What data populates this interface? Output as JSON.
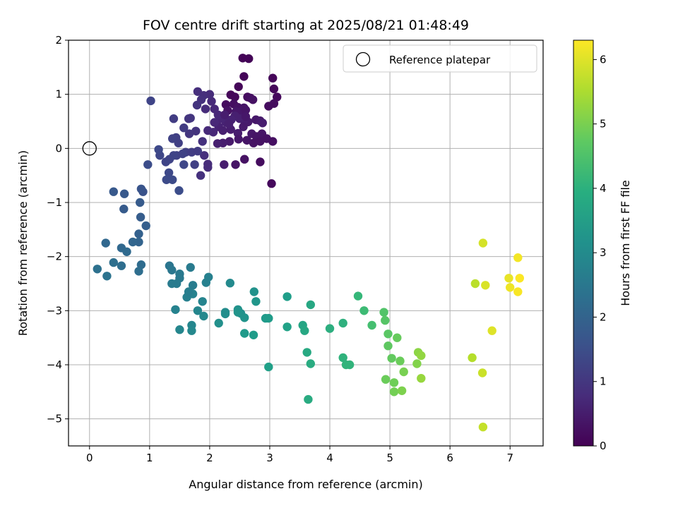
{
  "chart_data": {
    "type": "scatter",
    "title": "FOV centre drift starting at 2025/08/21 01:48:49",
    "xlabel": "Angular distance from reference (arcmin)",
    "ylabel": "Rotation from reference (arcmin)",
    "xlim": [
      -0.35,
      7.55
    ],
    "ylim": [
      -5.5,
      2.0
    ],
    "xticks": [
      0,
      1,
      2,
      3,
      4,
      5,
      6,
      7
    ],
    "yticks": [
      -5,
      -4,
      -3,
      -2,
      -1,
      0,
      1,
      2
    ],
    "grid": true,
    "legend": {
      "placement": "top-right",
      "label": "Reference platepar"
    },
    "reference_point": [
      0,
      0
    ],
    "colorbar": {
      "label": "Hours from first FF file",
      "range": [
        0,
        6.3
      ],
      "ticks": [
        0,
        1,
        2,
        3,
        4,
        5,
        6
      ],
      "colormap": "viridis"
    },
    "points": [
      [
        2.55,
        1.67,
        0.05
      ],
      [
        2.65,
        1.66,
        0.05
      ],
      [
        3.05,
        1.3,
        0.1
      ],
      [
        2.57,
        1.33,
        0.08
      ],
      [
        2.48,
        1.14,
        0.1
      ],
      [
        3.07,
        1.1,
        0.12
      ],
      [
        3.12,
        0.95,
        0.15
      ],
      [
        2.98,
        0.78,
        0.2
      ],
      [
        3.07,
        0.83,
        0.2
      ],
      [
        2.35,
        0.99,
        0.1
      ],
      [
        2.42,
        0.95,
        0.12
      ],
      [
        2.63,
        0.95,
        0.2
      ],
      [
        2.68,
        0.93,
        0.25
      ],
      [
        2.72,
        0.9,
        0.3
      ],
      [
        2.27,
        0.81,
        0.2
      ],
      [
        2.4,
        0.82,
        0.25
      ],
      [
        2.47,
        0.76,
        0.3
      ],
      [
        2.57,
        0.75,
        0.35
      ],
      [
        2.3,
        0.7,
        0.3
      ],
      [
        2.44,
        0.68,
        0.4
      ],
      [
        2.53,
        0.68,
        0.4
      ],
      [
        2.6,
        0.71,
        0.35
      ],
      [
        2.77,
        0.53,
        0.4
      ],
      [
        2.84,
        0.51,
        0.45
      ],
      [
        2.88,
        0.47,
        0.5
      ],
      [
        2.64,
        0.49,
        0.45
      ],
      [
        2.57,
        0.52,
        0.5
      ],
      [
        2.5,
        0.55,
        0.55
      ],
      [
        2.42,
        0.6,
        0.55
      ],
      [
        2.36,
        0.53,
        0.6
      ],
      [
        2.27,
        0.48,
        0.6
      ],
      [
        2.19,
        0.55,
        0.65
      ],
      [
        2.14,
        0.62,
        0.7
      ],
      [
        2.08,
        0.73,
        0.7
      ],
      [
        2.03,
        0.87,
        0.75
      ],
      [
        1.93,
        0.73,
        0.8
      ],
      [
        2.0,
        1.0,
        0.8
      ],
      [
        1.9,
        0.98,
        0.85
      ],
      [
        1.8,
        1.05,
        0.85
      ],
      [
        1.86,
        0.9,
        0.9
      ],
      [
        2.15,
        0.4,
        0.6
      ],
      [
        2.22,
        0.33,
        0.55
      ],
      [
        2.35,
        0.35,
        0.5
      ],
      [
        2.47,
        0.28,
        0.5
      ],
      [
        2.56,
        0.4,
        0.45
      ],
      [
        2.7,
        0.27,
        0.4
      ],
      [
        2.78,
        0.22,
        0.35
      ],
      [
        2.87,
        0.27,
        0.35
      ],
      [
        2.95,
        0.18,
        0.3
      ],
      [
        2.84,
        0.13,
        0.3
      ],
      [
        3.05,
        0.13,
        0.25
      ],
      [
        2.73,
        0.1,
        0.3
      ],
      [
        2.62,
        0.15,
        0.35
      ],
      [
        2.48,
        0.17,
        0.4
      ],
      [
        2.33,
        0.13,
        0.45
      ],
      [
        2.22,
        0.1,
        0.5
      ],
      [
        2.13,
        0.09,
        0.55
      ],
      [
        2.06,
        0.3,
        0.7
      ],
      [
        1.97,
        0.33,
        0.75
      ],
      [
        2.08,
        0.48,
        0.7
      ],
      [
        2.25,
        0.62,
        0.5
      ],
      [
        2.32,
        0.45,
        0.55
      ],
      [
        2.6,
        0.59,
        0.4
      ],
      [
        2.84,
        -0.25,
        0.2
      ],
      [
        3.03,
        -0.65,
        0.15
      ],
      [
        2.58,
        -0.2,
        0.3
      ],
      [
        2.43,
        -0.3,
        0.35
      ],
      [
        2.24,
        -0.3,
        0.5
      ],
      [
        1.97,
        -0.29,
        0.8
      ],
      [
        1.97,
        -0.35,
        0.8
      ],
      [
        1.85,
        -0.5,
        0.9
      ],
      [
        1.91,
        -0.13,
        0.85
      ],
      [
        1.88,
        0.13,
        0.9
      ],
      [
        1.77,
        0.32,
        0.95
      ],
      [
        1.66,
        0.27,
        1.0
      ],
      [
        1.79,
        0.8,
        0.95
      ],
      [
        1.65,
        0.55,
        1.0
      ],
      [
        1.68,
        0.56,
        1.0
      ],
      [
        1.57,
        0.38,
        1.1
      ],
      [
        1.4,
        0.55,
        1.15
      ],
      [
        1.44,
        0.2,
        1.2
      ],
      [
        1.48,
        0.1,
        1.2
      ],
      [
        1.38,
        0.18,
        1.25
      ],
      [
        1.6,
        -0.07,
        1.2
      ],
      [
        1.7,
        -0.07,
        1.15
      ],
      [
        1.8,
        -0.05,
        1.1
      ],
      [
        1.55,
        -0.1,
        1.25
      ],
      [
        1.45,
        -0.13,
        1.25
      ],
      [
        1.4,
        -0.13,
        1.3
      ],
      [
        1.27,
        -0.25,
        1.3
      ],
      [
        1.17,
        -0.13,
        1.35
      ],
      [
        1.15,
        -0.02,
        1.4
      ],
      [
        1.32,
        -0.45,
        1.4
      ],
      [
        1.28,
        -0.58,
        1.45
      ],
      [
        1.38,
        -0.58,
        1.45
      ],
      [
        1.49,
        -0.78,
        1.5
      ],
      [
        1.02,
        0.88,
        1.3
      ],
      [
        0.97,
        -0.3,
        1.5
      ],
      [
        1.57,
        -0.3,
        1.35
      ],
      [
        1.75,
        -0.3,
        1.2
      ],
      [
        1.33,
        -0.2,
        1.3
      ],
      [
        0.89,
        -0.8,
        1.6
      ],
      [
        0.86,
        -0.75,
        1.65
      ],
      [
        0.4,
        -0.8,
        1.75
      ],
      [
        0.58,
        -0.84,
        1.75
      ],
      [
        0.57,
        -1.12,
        1.8
      ],
      [
        0.84,
        -1.0,
        1.8
      ],
      [
        0.85,
        -1.27,
        1.85
      ],
      [
        0.94,
        -1.43,
        1.9
      ],
      [
        0.82,
        -1.58,
        1.95
      ],
      [
        0.82,
        -1.73,
        2.0
      ],
      [
        0.72,
        -1.73,
        2.05
      ],
      [
        0.27,
        -1.75,
        2.1
      ],
      [
        0.53,
        -1.84,
        2.1
      ],
      [
        0.62,
        -1.91,
        2.15
      ],
      [
        0.86,
        -2.15,
        2.2
      ],
      [
        0.53,
        -2.17,
        2.25
      ],
      [
        0.4,
        -2.11,
        2.3
      ],
      [
        0.13,
        -2.23,
        2.35
      ],
      [
        0.29,
        -2.36,
        2.4
      ],
      [
        0.82,
        -2.27,
        2.25
      ],
      [
        1.33,
        -2.17,
        2.45
      ],
      [
        1.37,
        -2.25,
        2.5
      ],
      [
        1.5,
        -2.32,
        2.55
      ],
      [
        1.5,
        -2.4,
        2.55
      ],
      [
        1.45,
        -2.5,
        2.6
      ],
      [
        1.37,
        -2.5,
        2.6
      ],
      [
        1.68,
        -2.2,
        2.6
      ],
      [
        1.72,
        -2.53,
        2.65
      ],
      [
        1.94,
        -2.48,
        2.75
      ],
      [
        1.98,
        -2.38,
        2.75
      ],
      [
        2.34,
        -2.49,
        3.0
      ],
      [
        1.72,
        -2.69,
        2.8
      ],
      [
        1.62,
        -2.75,
        2.75
      ],
      [
        1.65,
        -2.65,
        2.7
      ],
      [
        1.88,
        -2.83,
        2.85
      ],
      [
        1.43,
        -2.98,
        2.8
      ],
      [
        1.8,
        -3.0,
        2.9
      ],
      [
        1.9,
        -3.1,
        2.95
      ],
      [
        2.26,
        -3.03,
        3.05
      ],
      [
        2.26,
        -3.06,
        3.1
      ],
      [
        2.15,
        -3.23,
        3.15
      ],
      [
        2.52,
        -3.05,
        3.15
      ],
      [
        2.47,
        -2.98,
        3.2
      ],
      [
        2.47,
        -3.03,
        3.25
      ],
      [
        2.58,
        -3.13,
        3.25
      ],
      [
        2.74,
        -2.65,
        3.2
      ],
      [
        2.77,
        -2.83,
        3.3
      ],
      [
        2.93,
        -3.14,
        3.4
      ],
      [
        2.98,
        -3.14,
        3.45
      ],
      [
        1.5,
        -3.35,
        2.9
      ],
      [
        1.7,
        -3.27,
        2.9
      ],
      [
        1.7,
        -3.37,
        2.95
      ],
      [
        2.58,
        -3.42,
        3.4
      ],
      [
        2.73,
        -3.45,
        3.45
      ],
      [
        2.98,
        -4.04,
        3.55
      ],
      [
        3.29,
        -2.74,
        3.5
      ],
      [
        3.29,
        -3.3,
        3.6
      ],
      [
        3.55,
        -3.27,
        3.7
      ],
      [
        3.58,
        -3.37,
        3.75
      ],
      [
        3.68,
        -2.89,
        3.75
      ],
      [
        3.62,
        -3.77,
        3.8
      ],
      [
        3.68,
        -3.98,
        3.85
      ],
      [
        3.64,
        -4.64,
        3.85
      ],
      [
        4.0,
        -3.33,
        3.95
      ],
      [
        4.22,
        -3.23,
        4.0
      ],
      [
        4.22,
        -3.87,
        4.05
      ],
      [
        4.27,
        -4.0,
        4.1
      ],
      [
        4.33,
        -4.0,
        4.1
      ],
      [
        4.47,
        -2.73,
        4.2
      ],
      [
        4.57,
        -3.0,
        4.3
      ],
      [
        4.7,
        -3.27,
        4.4
      ],
      [
        4.9,
        -3.03,
        4.55
      ],
      [
        4.92,
        -3.18,
        4.6
      ],
      [
        4.97,
        -3.43,
        4.65
      ],
      [
        4.97,
        -3.65,
        4.7
      ],
      [
        5.03,
        -3.88,
        4.75
      ],
      [
        5.12,
        -3.5,
        4.8
      ],
      [
        5.17,
        -3.93,
        4.85
      ],
      [
        4.93,
        -4.27,
        4.85
      ],
      [
        5.07,
        -4.33,
        4.9
      ],
      [
        5.07,
        -4.5,
        4.95
      ],
      [
        5.23,
        -4.13,
        5.0
      ],
      [
        5.2,
        -4.48,
        5.05
      ],
      [
        5.45,
        -3.98,
        5.1
      ],
      [
        5.47,
        -3.77,
        5.2
      ],
      [
        5.52,
        -3.83,
        5.25
      ],
      [
        5.52,
        -4.25,
        5.3
      ],
      [
        6.37,
        -3.87,
        5.6
      ],
      [
        6.42,
        -2.5,
        5.65
      ],
      [
        6.54,
        -4.15,
        5.8
      ],
      [
        6.55,
        -1.75,
        5.9
      ],
      [
        6.55,
        -5.15,
        5.75
      ],
      [
        6.59,
        -2.53,
        5.95
      ],
      [
        6.7,
        -3.37,
        6.0
      ],
      [
        6.98,
        -2.4,
        6.1
      ],
      [
        7.0,
        -2.57,
        6.15
      ],
      [
        7.13,
        -2.02,
        6.2
      ],
      [
        7.13,
        -2.65,
        6.25
      ],
      [
        7.16,
        -2.4,
        6.28
      ]
    ]
  }
}
